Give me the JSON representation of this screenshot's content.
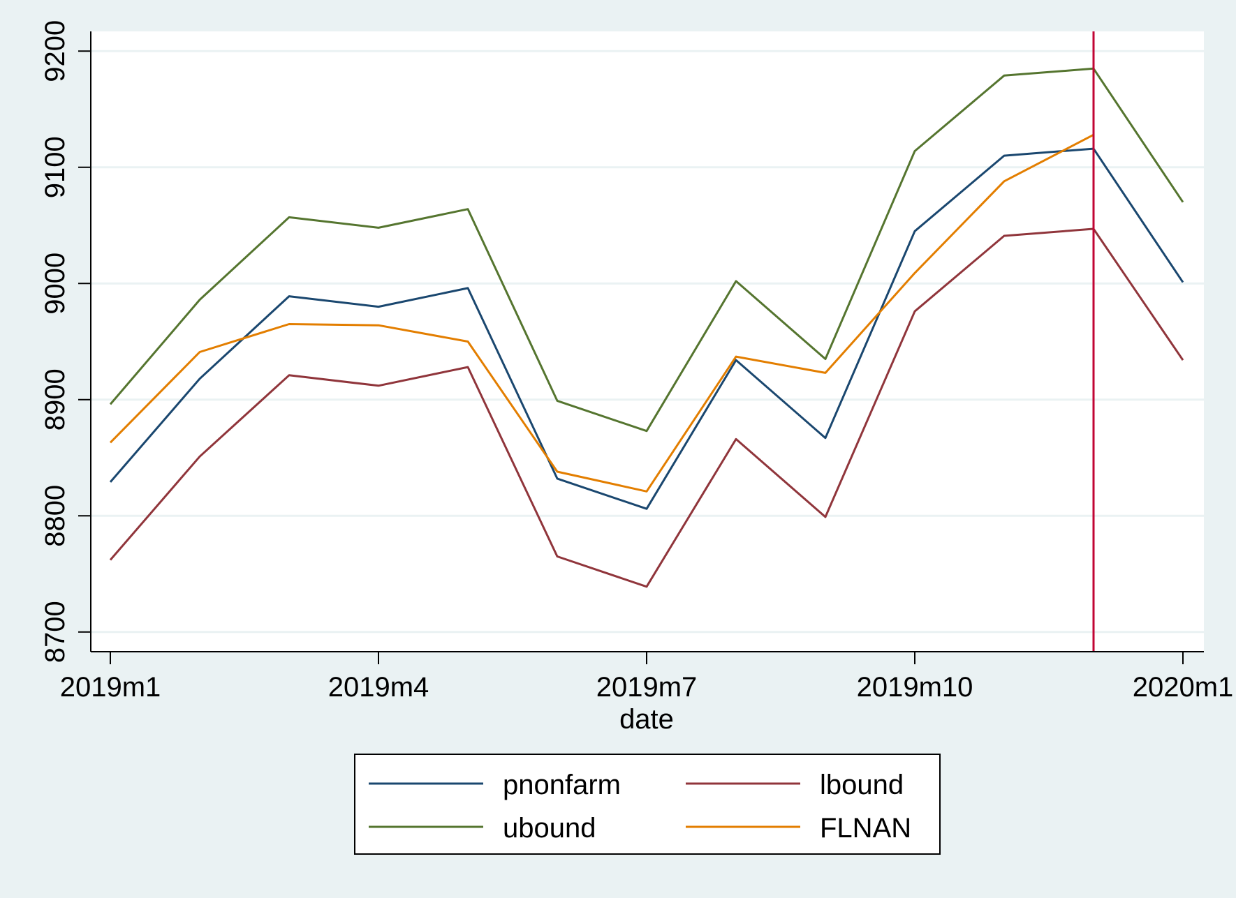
{
  "chart_data": {
    "type": "line",
    "title": "",
    "xlabel": "date",
    "ylabel": "",
    "x": [
      "2019m1",
      "2019m2",
      "2019m3",
      "2019m4",
      "2019m5",
      "2019m6",
      "2019m7",
      "2019m8",
      "2019m9",
      "2019m10",
      "2019m11",
      "2019m12",
      "2020m1"
    ],
    "xticks": [
      "2019m1",
      "2019m4",
      "2019m7",
      "2019m10",
      "2020m1"
    ],
    "yticks": [
      8700,
      8800,
      8900,
      9000,
      9100,
      9200
    ],
    "ylim": [
      8683,
      9217
    ],
    "grid": true,
    "vline_at": "2019m12",
    "legend_position": "bottom",
    "series": [
      {
        "name": "pnonfarm",
        "color": "#1a476f",
        "values": [
          8829,
          8918,
          8989,
          8980,
          8996,
          8832,
          8806,
          8934,
          8867,
          9045,
          9110,
          9116,
          9001
        ]
      },
      {
        "name": "lbound",
        "color": "#90353b",
        "values": [
          8762,
          8851,
          8921,
          8912,
          8928,
          8765,
          8739,
          8866,
          8799,
          8976,
          9041,
          9047,
          8934
        ]
      },
      {
        "name": "ubound",
        "color": "#55752f",
        "values": [
          8896,
          8986,
          9057,
          9048,
          9064,
          8899,
          8873,
          9002,
          8935,
          9114,
          9179,
          9185,
          9070
        ]
      },
      {
        "name": "FLNAN",
        "color": "#e37e00",
        "values": [
          8863,
          8941,
          8965,
          8964,
          8950,
          8838,
          8821,
          8937,
          8923,
          9009,
          9088,
          9128,
          null
        ]
      }
    ],
    "vline_color": "#c10534"
  }
}
